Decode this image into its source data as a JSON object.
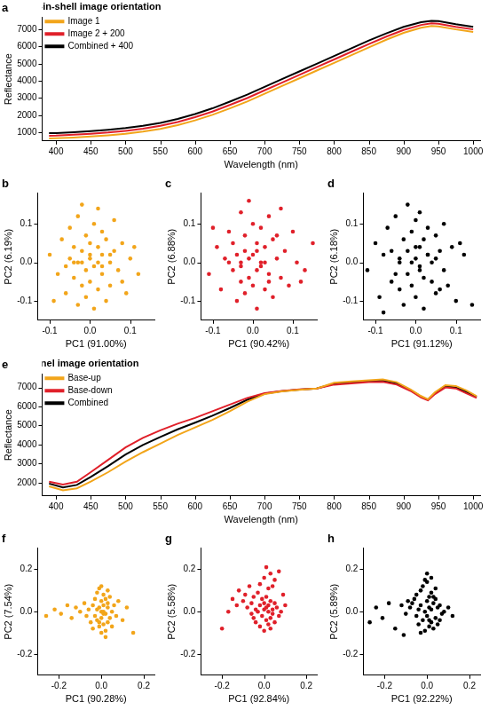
{
  "chart_data": [
    {
      "panel": "a",
      "type": "line",
      "title": "Nut-in-shell image orientation",
      "x_label": "Wavelength (nm)",
      "y_label": "Reflectance",
      "legend": "top-left",
      "grid": false,
      "xlim": [
        380,
        1010
      ],
      "xticks": [
        400,
        450,
        500,
        550,
        600,
        650,
        700,
        750,
        800,
        850,
        900,
        950,
        1000
      ],
      "ylim": [
        500,
        7700
      ],
      "yticks": [
        1000,
        2000,
        3000,
        4000,
        5000,
        6000,
        7000
      ],
      "x": [
        390,
        400,
        425,
        450,
        475,
        500,
        525,
        550,
        575,
        600,
        625,
        650,
        675,
        700,
        725,
        750,
        775,
        800,
        825,
        850,
        875,
        900,
        925,
        940,
        950,
        975,
        1000
      ],
      "series": [
        {
          "name": "Image 1",
          "color": "#f2a51a",
          "values": [
            650,
            660,
            700,
            760,
            830,
            920,
            1040,
            1200,
            1420,
            1700,
            2020,
            2400,
            2800,
            3250,
            3700,
            4150,
            4600,
            5050,
            5500,
            5950,
            6400,
            6800,
            7100,
            7200,
            7180,
            7000,
            6850
          ]
        },
        {
          "name": "Image 2 + 200",
          "color": "#e0202a",
          "values": [
            800,
            810,
            860,
            920,
            990,
            1090,
            1210,
            1380,
            1600,
            1890,
            2210,
            2600,
            3000,
            3450,
            3900,
            4350,
            4800,
            5250,
            5700,
            6150,
            6580,
            6970,
            7260,
            7350,
            7330,
            7150,
            7000
          ]
        },
        {
          "name": "Combined + 400",
          "color": "#000000",
          "values": [
            950,
            960,
            1010,
            1070,
            1150,
            1250,
            1380,
            1550,
            1780,
            2070,
            2400,
            2790,
            3200,
            3650,
            4100,
            4550,
            5000,
            5450,
            5900,
            6350,
            6770,
            7150,
            7420,
            7500,
            7480,
            7300,
            7150
          ]
        }
      ]
    },
    {
      "panel": "b",
      "type": "scatter",
      "x_label": "PC1 (91.00%)",
      "y_label": "PC2 (6.19%)",
      "color": "#f2a51a",
      "grid": false,
      "xlim": [
        -0.13,
        0.16
      ],
      "xticks": [
        -0.1,
        {
          "value": 0,
          "label": "0.0"
        },
        0.1
      ],
      "ylim": [
        -0.15,
        0.18
      ],
      "yticks": [
        -0.1,
        {
          "value": 0,
          "label": "0.0"
        },
        0.1
      ],
      "x": [
        -0.1,
        -0.08,
        -0.07,
        -0.06,
        -0.05,
        -0.05,
        -0.04,
        -0.04,
        -0.03,
        -0.03,
        -0.03,
        -0.02,
        -0.02,
        -0.02,
        -0.01,
        -0.01,
        -0.01,
        0.0,
        0.0,
        0.0,
        0.01,
        0.01,
        0.01,
        0.02,
        0.02,
        0.02,
        0.03,
        0.03,
        0.03,
        0.04,
        0.04,
        0.05,
        0.05,
        0.06,
        0.06,
        0.07,
        0.08,
        0.09,
        0.1,
        0.12,
        -0.09,
        -0.02,
        0.02,
        0.03,
        -0.04,
        0.0,
        0.05,
        -0.06,
        0.08,
        0.11
      ],
      "values": [
        0.02,
        -0.03,
        0.06,
        -0.08,
        0.01,
        0.09,
        -0.04,
        0.04,
        -0.11,
        0.0,
        0.12,
        -0.06,
        0.03,
        0.15,
        -0.02,
        0.07,
        -0.09,
        0.01,
        0.05,
        -0.05,
        0.1,
        -0.01,
        -0.12,
        0.04,
        -0.07,
        0.14,
        0.02,
        -0.03,
        0.08,
        -0.1,
        0.06,
        0.0,
        -0.06,
        0.03,
        0.11,
        -0.02,
        0.05,
        -0.08,
        0.01,
        -0.03,
        -0.1,
        0.0,
        0.0,
        -0.01,
        0.0,
        0.02,
        0.02,
        -0.01,
        -0.05,
        0.04
      ]
    },
    {
      "panel": "c",
      "type": "scatter",
      "x_label": "PC1 (90.42%)",
      "y_label": "PC2 (6.88%)",
      "color": "#e0202a",
      "grid": false,
      "xlim": [
        -0.13,
        0.16
      ],
      "xticks": [
        -0.1,
        {
          "value": 0,
          "label": "0.0"
        },
        0.1
      ],
      "ylim": [
        -0.15,
        0.18
      ],
      "yticks": [
        -0.1,
        {
          "value": 0,
          "label": "0.0"
        },
        0.1
      ],
      "x": [
        -0.11,
        -0.09,
        -0.08,
        -0.07,
        -0.06,
        -0.05,
        -0.05,
        -0.04,
        -0.04,
        -0.03,
        -0.03,
        -0.03,
        -0.02,
        -0.02,
        -0.02,
        -0.01,
        -0.01,
        0.0,
        0.0,
        0.0,
        0.01,
        0.01,
        0.01,
        0.02,
        0.02,
        0.03,
        0.03,
        0.04,
        0.04,
        0.05,
        0.05,
        0.06,
        0.06,
        0.07,
        0.08,
        0.09,
        0.1,
        0.11,
        0.13,
        0.15,
        -0.1,
        -0.01,
        0.02,
        0.03,
        -0.03,
        0.01,
        0.04,
        -0.06,
        0.07,
        0.12
      ],
      "values": [
        -0.03,
        0.04,
        -0.07,
        0.01,
        0.08,
        -0.02,
        0.05,
        -0.1,
        0.02,
        0.13,
        -0.05,
        0.0,
        0.07,
        -0.08,
        0.03,
        0.16,
        -0.04,
        0.02,
        0.1,
        -0.06,
        0.05,
        -0.02,
        -0.12,
        0.09,
        0.0,
        -0.07,
        0.04,
        0.12,
        -0.03,
        0.06,
        -0.09,
        0.01,
        0.07,
        -0.04,
        0.03,
        -0.06,
        0.08,
        0.0,
        -0.02,
        0.05,
        0.09,
        0.01,
        -0.01,
        0.0,
        -0.01,
        0.03,
        -0.05,
        0.0,
        0.14,
        -0.05
      ]
    },
    {
      "panel": "d",
      "type": "scatter",
      "x_label": "PC1 (91.12%)",
      "y_label": "PC2 (6.18%)",
      "color": "#000000",
      "grid": false,
      "xlim": [
        -0.13,
        0.16
      ],
      "xticks": [
        -0.1,
        {
          "value": 0,
          "label": "0.0"
        },
        0.1
      ],
      "ylim": [
        -0.15,
        0.18
      ],
      "yticks": [
        -0.1,
        {
          "value": 0,
          "label": "0.0"
        },
        0.1
      ],
      "x": [
        -0.12,
        -0.1,
        -0.09,
        -0.08,
        -0.07,
        -0.06,
        -0.06,
        -0.05,
        -0.04,
        -0.04,
        -0.03,
        -0.03,
        -0.02,
        -0.02,
        -0.02,
        -0.01,
        -0.01,
        0.0,
        0.0,
        0.0,
        0.01,
        0.01,
        0.01,
        0.02,
        0.02,
        0.02,
        0.03,
        0.03,
        0.04,
        0.04,
        0.05,
        0.05,
        0.06,
        0.07,
        0.07,
        0.08,
        0.09,
        0.1,
        0.12,
        0.14,
        -0.08,
        -0.01,
        0.01,
        0.03,
        -0.04,
        0.0,
        0.05,
        -0.05,
        0.06,
        0.11
      ],
      "values": [
        -0.02,
        0.05,
        -0.09,
        0.02,
        0.09,
        -0.05,
        0.03,
        0.12,
        -0.07,
        0.01,
        0.06,
        -0.11,
        0.03,
        0.15,
        -0.03,
        0.08,
        -0.06,
        0.01,
        0.11,
        -0.09,
        0.04,
        -0.01,
        0.13,
        -0.04,
        0.06,
        -0.12,
        0.02,
        0.09,
        -0.05,
        0.0,
        0.07,
        -0.08,
        0.03,
        -0.02,
        0.1,
        -0.06,
        0.04,
        -0.1,
        0.02,
        -0.11,
        -0.13,
        0.0,
        -0.02,
        0.02,
        0.0,
        0.04,
        0.01,
        -0.03,
        -0.07,
        0.05
      ]
    },
    {
      "panel": "e",
      "type": "line",
      "title": "Kernel image orientation",
      "x_label": "Wavelength (nm)",
      "y_label": "Reflectance",
      "legend": "top-left",
      "grid": false,
      "xlim": [
        380,
        1010
      ],
      "xticks": [
        400,
        450,
        500,
        550,
        600,
        650,
        700,
        750,
        800,
        850,
        900,
        950,
        1000
      ],
      "ylim": [
        1300,
        7700
      ],
      "yticks": [
        2000,
        3000,
        4000,
        5000,
        6000,
        7000
      ],
      "x": [
        390,
        410,
        430,
        450,
        475,
        500,
        525,
        550,
        575,
        600,
        625,
        650,
        675,
        700,
        725,
        750,
        775,
        800,
        825,
        850,
        870,
        890,
        910,
        925,
        935,
        945,
        960,
        975,
        990,
        1005
      ],
      "series": [
        {
          "name": "Base-up",
          "color": "#f2a51a",
          "values": [
            1800,
            1600,
            1700,
            2050,
            2550,
            3100,
            3600,
            4050,
            4500,
            4900,
            5300,
            5750,
            6250,
            6650,
            6800,
            6880,
            6950,
            7250,
            7320,
            7380,
            7420,
            7280,
            6900,
            6550,
            6380,
            6750,
            7120,
            7080,
            6850,
            6550
          ]
        },
        {
          "name": "Base-down",
          "color": "#e0202a",
          "values": [
            2050,
            1900,
            2050,
            2550,
            3200,
            3850,
            4350,
            4750,
            5100,
            5400,
            5750,
            6100,
            6450,
            6700,
            6820,
            6900,
            6950,
            7150,
            7220,
            7280,
            7300,
            7150,
            6820,
            6480,
            6330,
            6650,
            7000,
            6950,
            6700,
            6450
          ]
        },
        {
          "name": "Combined",
          "color": "#000000",
          "values": [
            1950,
            1750,
            1880,
            2300,
            2870,
            3480,
            3980,
            4400,
            4800,
            5150,
            5520,
            5920,
            6350,
            6680,
            6810,
            6890,
            6950,
            7200,
            7270,
            7330,
            7360,
            7220,
            6860,
            6520,
            6360,
            6700,
            7060,
            7010,
            6780,
            6500
          ]
        }
      ]
    },
    {
      "panel": "f",
      "type": "scatter",
      "x_label": "PC1 (90.28%)",
      "y_label": "PC2 (7.54%)",
      "color": "#f2a51a",
      "grid": false,
      "xlim": [
        -0.3,
        0.25
      ],
      "xticks": [
        -0.2,
        {
          "value": 0,
          "label": "0.0"
        },
        0.2
      ],
      "ylim": [
        -0.3,
        0.3
      ],
      "yticks": [
        -0.2,
        {
          "value": 0,
          "label": "0.0"
        },
        0.2
      ],
      "x": [
        -0.26,
        -0.22,
        -0.19,
        -0.16,
        -0.14,
        -0.12,
        -0.1,
        -0.08,
        -0.07,
        -0.06,
        -0.05,
        -0.04,
        -0.04,
        -0.03,
        -0.03,
        -0.02,
        -0.02,
        -0.02,
        -0.01,
        -0.01,
        -0.01,
        0.0,
        0.0,
        0.0,
        0.0,
        0.01,
        0.01,
        0.01,
        0.01,
        0.02,
        0.02,
        0.02,
        0.03,
        0.03,
        0.03,
        0.04,
        0.04,
        0.05,
        0.05,
        0.06,
        0.07,
        0.08,
        0.1,
        0.12,
        0.15,
        0.0,
        0.02,
        -0.01,
        0.03,
        0.01
      ],
      "values": [
        -0.02,
        0.01,
        -0.01,
        0.03,
        -0.03,
        0.02,
        0.0,
        0.04,
        -0.02,
        0.01,
        -0.05,
        0.03,
        -0.08,
        0.06,
        -0.02,
        0.09,
        -0.04,
        0.01,
        0.11,
        -0.07,
        0.02,
        -0.1,
        0.05,
        0.0,
        -0.03,
        0.08,
        -0.06,
        0.03,
        0.0,
        -0.09,
        0.06,
        -0.01,
        0.04,
        -0.05,
        0.02,
        -0.03,
        0.07,
        0.0,
        -0.07,
        0.03,
        -0.02,
        0.05,
        -0.04,
        0.02,
        -0.1,
        0.12,
        -0.12,
        -0.05,
        0.1,
        -0.01
      ]
    },
    {
      "panel": "g",
      "type": "scatter",
      "x_label": "PC1 (92.84%)",
      "y_label": "PC2 (5.58%)",
      "color": "#e0202a",
      "grid": false,
      "xlim": [
        -0.3,
        0.25
      ],
      "xticks": [
        -0.2,
        {
          "value": 0,
          "label": "0.0"
        },
        0.2
      ],
      "ylim": [
        -0.3,
        0.3
      ],
      "yticks": [
        -0.2,
        {
          "value": 0,
          "label": "0.0"
        },
        0.2
      ],
      "x": [
        -0.2,
        -0.17,
        -0.15,
        -0.13,
        -0.12,
        -0.1,
        -0.09,
        -0.08,
        -0.07,
        -0.06,
        -0.05,
        -0.05,
        -0.04,
        -0.04,
        -0.03,
        -0.03,
        -0.02,
        -0.02,
        -0.01,
        -0.01,
        0.0,
        0.0,
        0.0,
        0.01,
        0.01,
        0.01,
        0.02,
        0.02,
        0.02,
        0.03,
        0.03,
        0.03,
        0.04,
        0.04,
        0.05,
        0.05,
        0.06,
        0.07,
        0.08,
        0.1,
        0.01,
        0.03,
        0.05,
        0.07,
        -0.02,
        0.0,
        0.02,
        0.04,
        -0.06,
        0.09
      ],
      "values": [
        -0.08,
        0.0,
        0.06,
        0.03,
        0.1,
        0.05,
        0.08,
        0.02,
        0.12,
        0.04,
        -0.03,
        0.07,
        0.01,
        -0.05,
        0.09,
        0.0,
        -0.07,
        0.03,
        0.06,
        -0.02,
        -0.09,
        0.01,
        0.04,
        -0.04,
        0.02,
        0.07,
        -0.06,
        0.0,
        0.03,
        -0.03,
        0.05,
        -0.08,
        0.01,
        -0.01,
        0.04,
        -0.05,
        0.02,
        -0.02,
        0.0,
        0.03,
        0.21,
        0.18,
        0.15,
        0.19,
        0.13,
        0.16,
        0.11,
        0.12,
        -0.01,
        0.08
      ]
    },
    {
      "panel": "h",
      "type": "scatter",
      "x_label": "PC1 (92.22%)",
      "y_label": "PC2 (5.89%)",
      "color": "#000000",
      "grid": false,
      "xlim": [
        -0.3,
        0.25
      ],
      "xticks": [
        -0.2,
        {
          "value": 0,
          "label": "0.0"
        },
        0.2
      ],
      "ylim": [
        -0.3,
        0.3
      ],
      "yticks": [
        -0.2,
        {
          "value": 0,
          "label": "0.0"
        },
        0.2
      ],
      "x": [
        -0.27,
        -0.24,
        -0.21,
        -0.18,
        -0.15,
        -0.12,
        -0.1,
        -0.09,
        -0.08,
        -0.07,
        -0.06,
        -0.05,
        -0.05,
        -0.04,
        -0.04,
        -0.03,
        -0.03,
        -0.02,
        -0.02,
        -0.01,
        -0.01,
        0.0,
        0.0,
        0.0,
        0.01,
        0.01,
        0.01,
        0.02,
        0.02,
        0.02,
        0.03,
        0.03,
        0.04,
        0.04,
        0.05,
        0.05,
        0.06,
        0.07,
        0.08,
        0.1,
        0.12,
        0.0,
        0.02,
        0.04,
        -0.03,
        0.01,
        0.03,
        -0.01,
        0.06,
        -0.11
      ],
      "values": [
        -0.05,
        0.02,
        -0.03,
        0.04,
        -0.08,
        0.03,
        -0.01,
        0.05,
        0.02,
        0.04,
        0.06,
        -0.02,
        0.08,
        0.01,
        -0.06,
        0.1,
        0.03,
        -0.04,
        0.12,
        0.0,
        -0.09,
        0.05,
        -0.02,
        0.14,
        0.07,
        -0.07,
        0.02,
        0.09,
        -0.05,
        0.01,
        0.04,
        -0.08,
        0.06,
        -0.03,
        0.02,
        -0.06,
        0.03,
        -0.01,
        0.0,
        0.02,
        -0.02,
        0.18,
        0.16,
        0.11,
        -0.1,
        -0.04,
        0.07,
        0.15,
        -0.04,
        -0.11
      ]
    }
  ]
}
